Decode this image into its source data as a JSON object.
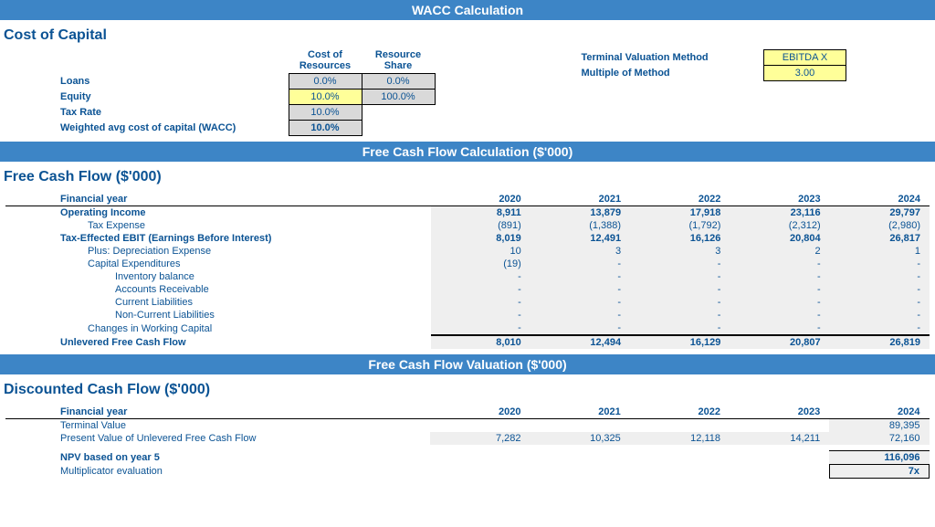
{
  "banners": {
    "wacc": "WACC Calculation",
    "fcf": "Free Cash Flow Calculation ($'000)",
    "val": "Free Cash Flow Valuation ($'000)"
  },
  "sections": {
    "cost_of_capital": "Cost of Capital",
    "fcf": "Free Cash Flow ($'000)",
    "dcf": "Discounted Cash Flow ($'000)"
  },
  "wacc": {
    "headers": {
      "cost": "Cost of Resources",
      "share": "Resource Share"
    },
    "rows": {
      "loans": {
        "label": "Loans",
        "cost": "0.0%",
        "cost_bg": "grey",
        "share": "0.0%",
        "share_bg": "grey"
      },
      "equity": {
        "label": "Equity",
        "cost": "10.0%",
        "cost_bg": "yellow",
        "share": "100.0%",
        "share_bg": "grey"
      },
      "tax": {
        "label": "Tax Rate",
        "cost": "10.0%",
        "cost_bg": "grey"
      },
      "wacc": {
        "label": "Weighted avg cost of capital (WACC)",
        "cost": "10.0%",
        "cost_bg": "grey",
        "bold": true
      }
    }
  },
  "terminal": {
    "method": {
      "label": "Terminal Valuation Method",
      "value": "EBITDA X",
      "bg": "yellow"
    },
    "multiple": {
      "label": "Multiple of Method",
      "value": "3.00",
      "bg": "yellow"
    }
  },
  "years": [
    "2020",
    "2021",
    "2022",
    "2023",
    "2024"
  ],
  "fcf": {
    "fin_year": "Financial year",
    "rows": [
      {
        "label": "Operating Income",
        "bold": true,
        "vals": [
          "8,911",
          "13,879",
          "17,918",
          "23,116",
          "29,797"
        ],
        "grey": true
      },
      {
        "label": "Tax Expense",
        "indent": 1,
        "vals": [
          "(891)",
          "(1,388)",
          "(1,792)",
          "(2,312)",
          "(2,980)"
        ],
        "grey": true
      },
      {
        "label": "Tax-Effected EBIT (Earnings Before Interest)",
        "bold": true,
        "vals": [
          "8,019",
          "12,491",
          "16,126",
          "20,804",
          "26,817"
        ],
        "grey": true
      },
      {
        "label": "Plus: Depreciation Expense",
        "indent": 1,
        "vals": [
          "10",
          "3",
          "3",
          "2",
          "1"
        ],
        "grey": true
      },
      {
        "label": "Capital Expenditures",
        "indent": 1,
        "vals": [
          "(19)",
          "-",
          "-",
          "-",
          "-"
        ],
        "grey": true
      },
      {
        "label": "Inventory balance",
        "indent": 2,
        "vals": [
          "-",
          "-",
          "-",
          "-",
          "-"
        ],
        "grey": true
      },
      {
        "label": "Accounts Receivable",
        "indent": 2,
        "vals": [
          "-",
          "-",
          "-",
          "-",
          "-"
        ],
        "grey": true
      },
      {
        "label": "Current Liabilities",
        "indent": 2,
        "vals": [
          "-",
          "-",
          "-",
          "-",
          "-"
        ],
        "grey": true
      },
      {
        "label": "Non-Current Liabilities",
        "indent": 2,
        "vals": [
          "-",
          "-",
          "-",
          "-",
          "-"
        ],
        "grey": true
      },
      {
        "label": "Changes in Working Capital",
        "indent": 1,
        "vals": [
          "-",
          "-",
          "-",
          "-",
          "-"
        ],
        "grey": true
      },
      {
        "label": "Unlevered Free Cash Flow",
        "bold": true,
        "topborder": true,
        "vals": [
          "8,010",
          "12,494",
          "16,129",
          "20,807",
          "26,819"
        ],
        "grey": true
      }
    ]
  },
  "dcf": {
    "fin_year": "Financial year",
    "rows": [
      {
        "label": "Terminal Value",
        "vals": [
          "",
          "",
          "",
          "",
          "89,395"
        ],
        "grey": [
          false,
          false,
          false,
          false,
          true
        ]
      },
      {
        "label": "Present Value of Unlevered Free Cash Flow",
        "vals": [
          "7,282",
          "10,325",
          "12,118",
          "14,211",
          "72,160"
        ],
        "grey": [
          true,
          true,
          true,
          true,
          true
        ]
      }
    ],
    "npv": {
      "label": "NPV based on year 5",
      "value": "116,096"
    },
    "mult": {
      "label": "Multiplicator evaluation",
      "value": "7x"
    }
  }
}
